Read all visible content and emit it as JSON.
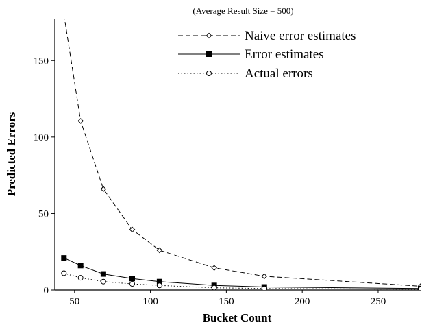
{
  "chart_data": {
    "type": "line",
    "title": "(Average Result Size = 500)",
    "xlabel": "Bucket Count",
    "ylabel": "Predicted Errors",
    "xlim": [
      37,
      278
    ],
    "ylim": [
      0,
      177
    ],
    "xticks": [
      50,
      100,
      150,
      200,
      250
    ],
    "yticks": [
      0,
      50,
      100,
      150
    ],
    "grid": false,
    "legend_position": "top-right",
    "series": [
      {
        "name": "Naive error estimates",
        "line_style": "dashed",
        "marker": "diamond-open",
        "x": [
          43,
          54,
          69,
          88,
          106,
          142,
          175,
          278
        ],
        "values": [
          180,
          110.5,
          66,
          39.5,
          26,
          14.5,
          9,
          2.5
        ]
      },
      {
        "name": "Error estimates",
        "line_style": "solid",
        "marker": "square-filled",
        "x": [
          43,
          54,
          69,
          88,
          106,
          142,
          175,
          278
        ],
        "values": [
          21,
          16,
          10.5,
          7.5,
          5.5,
          3,
          2,
          1
        ]
      },
      {
        "name": "Actual errors",
        "line_style": "dotted",
        "marker": "circle-open",
        "x": [
          43,
          54,
          69,
          88,
          106,
          142,
          175,
          278
        ],
        "values": [
          11,
          8,
          5.5,
          4,
          3,
          1.5,
          1,
          0.5
        ]
      }
    ]
  }
}
